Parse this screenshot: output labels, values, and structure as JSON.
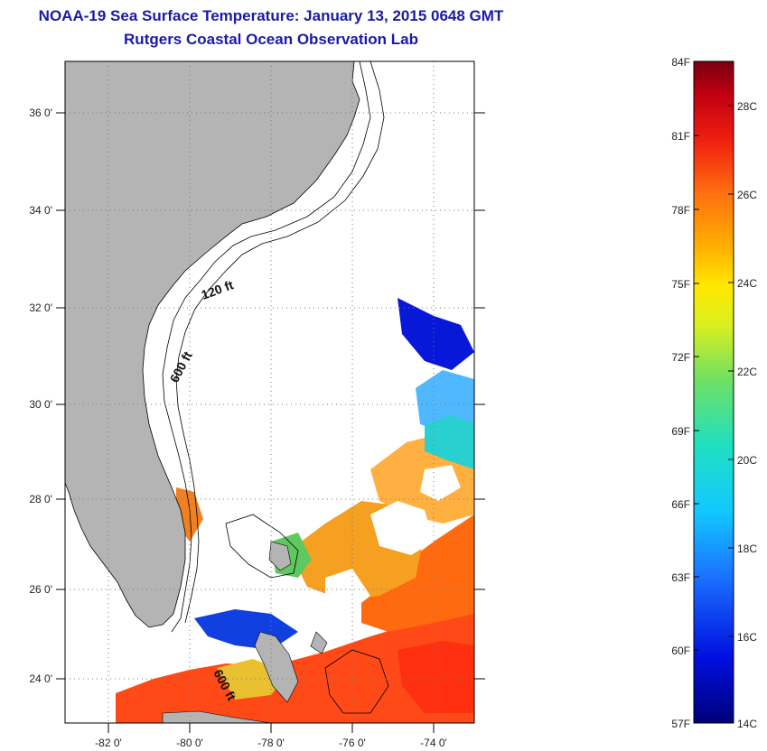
{
  "title": "NOAA-19 Sea Surface Temperature:  January 13, 2015 0648 GMT",
  "subtitle": "Rutgers Coastal Ocean Observation Lab",
  "map": {
    "lat_labels": [
      "36 0'",
      "34 0'",
      "32 0'",
      "30 0'",
      "28 0'",
      "26 0'",
      "24 0'"
    ],
    "lon_labels": [
      "-82 0'",
      "-80 0'",
      "-78 0'",
      "-76 0'",
      "-74 0'"
    ],
    "contour_labels": [
      "120 ft",
      "600 ft",
      "600 ft"
    ]
  },
  "colorbar": {
    "f_labels": [
      "84F",
      "81F",
      "78F",
      "75F",
      "72F",
      "69F",
      "66F",
      "63F",
      "60F",
      "57F"
    ],
    "c_labels": [
      "28C",
      "26C",
      "24C",
      "22C",
      "20C",
      "18C",
      "16C",
      "14C"
    ],
    "colors": {
      "land": "#b4b4b4",
      "title": "#1a1aa8",
      "grid": "#777777"
    }
  }
}
